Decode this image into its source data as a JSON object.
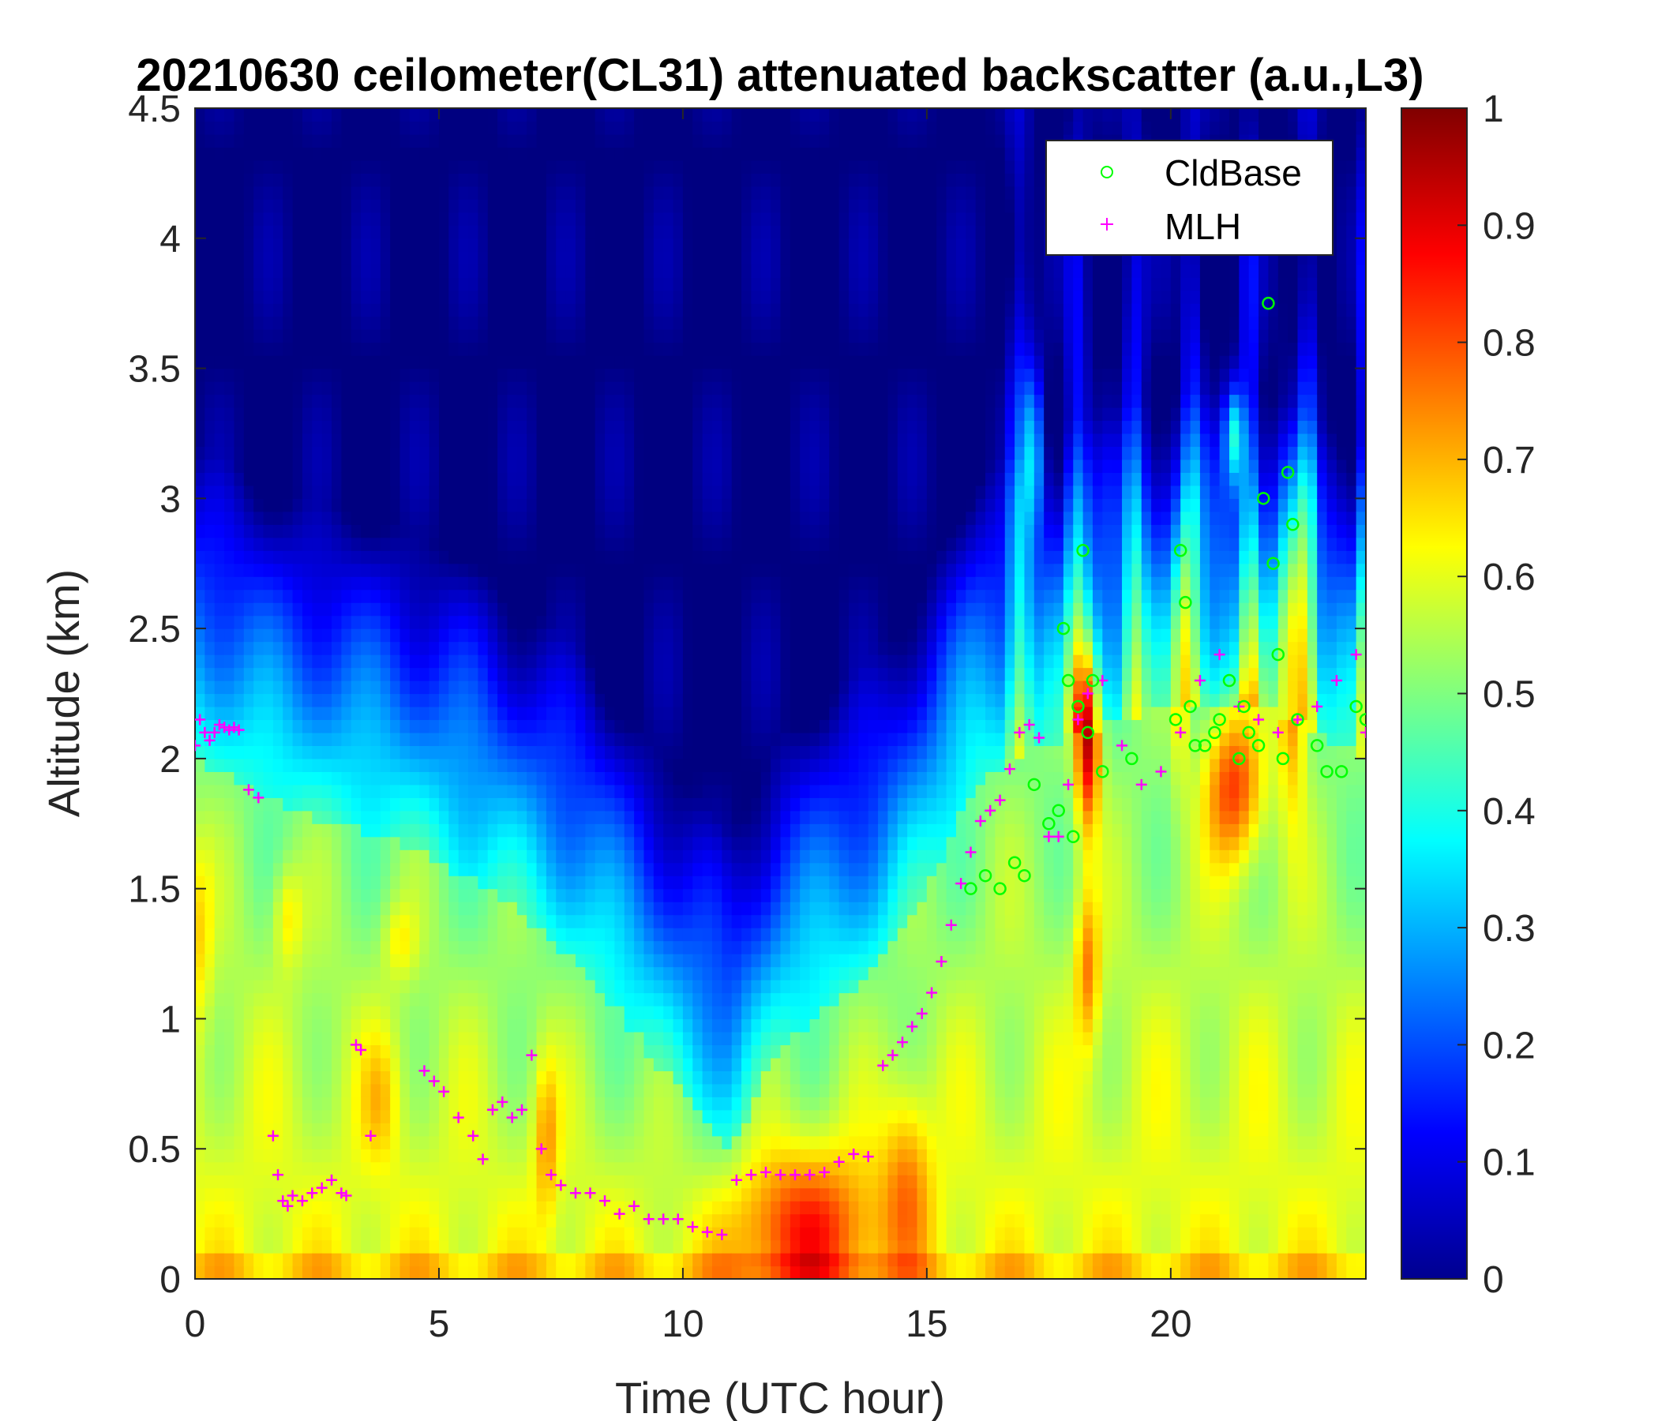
{
  "chart_data": {
    "type": "heatmap",
    "title": "20210630 ceilometer(CL31) attenuated backscatter (a.u.,L3)",
    "xlabel": "Time (UTC hour)",
    "ylabel": "Altitude (km)",
    "xlim": [
      0,
      24
    ],
    "ylim": [
      0,
      4.5
    ],
    "xticks": [
      "0",
      "5",
      "10",
      "15",
      "20"
    ],
    "xtick_values": [
      0,
      5,
      10,
      15,
      20
    ],
    "yticks": [
      "0",
      "0.5",
      "1",
      "1.5",
      "2",
      "2.5",
      "3",
      "3.5",
      "4",
      "4.5"
    ],
    "ytick_values": [
      0,
      0.5,
      1,
      1.5,
      2,
      2.5,
      3,
      3.5,
      4,
      4.5
    ],
    "colorbar": {
      "range": [
        0,
        1
      ],
      "ticks": [
        "0",
        "0.1",
        "0.2",
        "0.3",
        "0.4",
        "0.5",
        "0.6",
        "0.7",
        "0.8",
        "0.9",
        "1"
      ],
      "tick_values": [
        0,
        0.1,
        0.2,
        0.3,
        0.4,
        0.5,
        0.6,
        0.7,
        0.8,
        0.9,
        1.0
      ],
      "colormap": "jet"
    },
    "legend": {
      "position": "top-right",
      "entries": [
        {
          "label": "CldBase",
          "marker": "circle",
          "color": "#00ff00"
        },
        {
          "label": "MLH",
          "marker": "plus",
          "color": "#ff00ff"
        }
      ]
    },
    "series": [
      {
        "name": "MLH",
        "x": [
          0.0,
          0.1,
          0.2,
          0.3,
          0.4,
          0.5,
          0.6,
          0.7,
          0.8,
          0.9,
          1.1,
          1.3,
          1.6,
          1.7,
          1.8,
          1.9,
          2.0,
          2.2,
          2.4,
          2.6,
          2.8,
          3.0,
          3.1,
          3.3,
          3.4,
          3.6,
          4.7,
          4.9,
          5.1,
          5.4,
          5.7,
          5.9,
          6.1,
          6.3,
          6.5,
          6.7,
          6.9,
          7.1,
          7.3,
          7.5,
          7.8,
          8.1,
          8.4,
          8.7,
          9.0,
          9.3,
          9.6,
          9.9,
          10.2,
          10.5,
          10.8,
          11.1,
          11.4,
          11.7,
          12.0,
          12.3,
          12.6,
          12.9,
          13.2,
          13.5,
          13.8,
          14.1,
          14.3,
          14.5,
          14.7,
          14.9,
          15.1,
          15.3,
          15.5,
          15.7,
          15.9,
          16.1,
          16.3,
          16.5,
          16.7,
          16.9,
          17.1,
          17.3,
          17.5,
          17.7,
          17.9,
          18.1,
          18.3,
          18.6,
          19.0,
          19.4,
          19.8,
          20.2,
          20.6,
          21.0,
          21.4,
          21.8,
          22.2,
          22.6,
          23.0,
          23.4,
          23.8,
          24.0
        ],
        "y": [
          2.05,
          2.15,
          2.1,
          2.07,
          2.1,
          2.13,
          2.12,
          2.11,
          2.12,
          2.11,
          1.88,
          1.85,
          0.55,
          0.4,
          0.3,
          0.28,
          0.32,
          0.3,
          0.33,
          0.35,
          0.38,
          0.33,
          0.32,
          0.9,
          0.88,
          0.55,
          0.8,
          0.76,
          0.72,
          0.62,
          0.55,
          0.46,
          0.65,
          0.68,
          0.62,
          0.65,
          0.86,
          0.5,
          0.4,
          0.36,
          0.33,
          0.33,
          0.3,
          0.25,
          0.28,
          0.23,
          0.23,
          0.23,
          0.2,
          0.18,
          0.17,
          0.38,
          0.4,
          0.41,
          0.4,
          0.4,
          0.4,
          0.41,
          0.45,
          0.48,
          0.47,
          0.82,
          0.86,
          0.91,
          0.97,
          1.02,
          1.1,
          1.22,
          1.36,
          1.52,
          1.64,
          1.76,
          1.8,
          1.84,
          1.96,
          2.1,
          2.13,
          2.08,
          1.7,
          1.7,
          1.9,
          2.15,
          2.25,
          2.3,
          2.05,
          1.9,
          1.95,
          2.1,
          2.3,
          2.4,
          2.2,
          2.15,
          2.1,
          2.15,
          2.2,
          2.3,
          2.4,
          2.1
        ]
      },
      {
        "name": "CldBase",
        "x": [
          15.9,
          16.2,
          16.5,
          16.8,
          17.0,
          17.2,
          17.5,
          17.7,
          17.8,
          17.9,
          18.0,
          18.1,
          18.2,
          18.3,
          18.4,
          18.6,
          19.2,
          20.1,
          20.2,
          20.3,
          20.4,
          20.5,
          20.7,
          20.9,
          21.0,
          21.2,
          21.4,
          21.5,
          21.6,
          21.8,
          21.9,
          22.0,
          22.1,
          22.2,
          22.3,
          22.4,
          22.5,
          22.6,
          23.0,
          23.2,
          23.5,
          23.8,
          24.0
        ],
        "y": [
          1.5,
          1.55,
          1.5,
          1.6,
          1.55,
          1.9,
          1.75,
          1.8,
          2.5,
          2.3,
          1.7,
          2.2,
          2.8,
          2.1,
          2.3,
          1.95,
          2.0,
          2.15,
          2.8,
          2.6,
          2.2,
          2.05,
          2.05,
          2.1,
          2.15,
          2.3,
          2.0,
          2.2,
          2.1,
          2.05,
          3.0,
          3.75,
          2.75,
          2.4,
          2.0,
          3.1,
          2.9,
          2.15,
          2.05,
          1.95,
          1.95,
          2.2,
          2.15
        ]
      }
    ]
  }
}
